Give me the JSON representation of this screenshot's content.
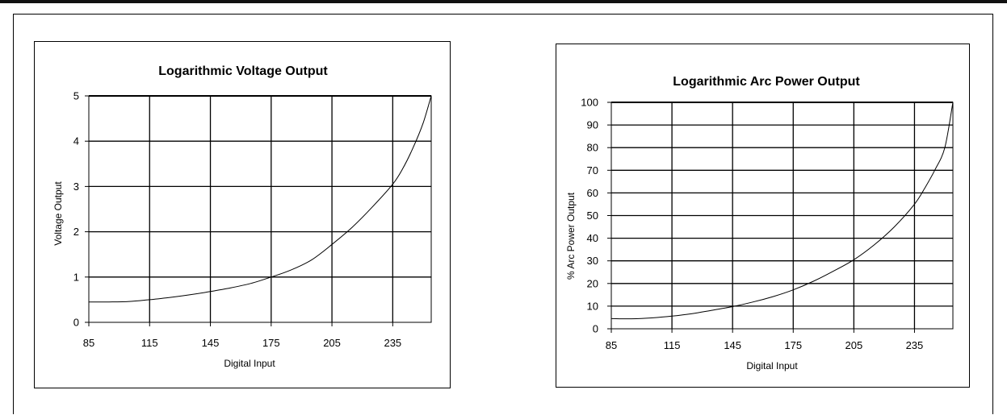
{
  "chart_data": [
    {
      "type": "line",
      "title": "Logarithmic Voltage Output",
      "xlabel": "Digital Input",
      "ylabel": "Voltage Output",
      "xlim": [
        85,
        254
      ],
      "ylim": [
        0,
        5
      ],
      "xticks": [
        "85",
        "115",
        "145",
        "175",
        "205",
        "235"
      ],
      "yticks": [
        "0",
        "1",
        "2",
        "3",
        "4",
        "5"
      ],
      "grid": true,
      "series": [
        {
          "x": [
            85,
            95,
            105,
            115,
            125,
            135,
            145,
            155,
            165,
            175,
            185,
            195,
            205,
            215,
            225,
            235,
            240,
            245,
            250,
            254
          ],
          "y": [
            0.45,
            0.45,
            0.46,
            0.5,
            0.55,
            0.61,
            0.68,
            0.76,
            0.86,
            1.0,
            1.16,
            1.38,
            1.72,
            2.1,
            2.55,
            3.05,
            3.4,
            3.85,
            4.4,
            5.0
          ]
        }
      ]
    },
    {
      "type": "line",
      "title": "Logarithmic Arc Power Output",
      "xlabel": "Digital Input",
      "ylabel": "% Arc Power Output",
      "xlim": [
        85,
        254
      ],
      "ylim": [
        0,
        100
      ],
      "xticks": [
        "85",
        "115",
        "145",
        "175",
        "205",
        "235"
      ],
      "yticks": [
        "0",
        "10",
        "20",
        "30",
        "40",
        "50",
        "60",
        "70",
        "80",
        "90",
        "100"
      ],
      "grid": true,
      "series": [
        {
          "x": [
            85,
            95,
            105,
            115,
            125,
            135,
            145,
            155,
            165,
            175,
            185,
            195,
            205,
            215,
            225,
            235,
            240,
            245,
            250,
            254
          ],
          "y": [
            4.5,
            4.4,
            4.8,
            5.6,
            6.7,
            8.2,
            9.8,
            11.8,
            14.2,
            17.2,
            21.0,
            25.5,
            30.5,
            37.0,
            45.0,
            55.0,
            62.0,
            70.0,
            80.0,
            100.0
          ]
        }
      ]
    }
  ]
}
